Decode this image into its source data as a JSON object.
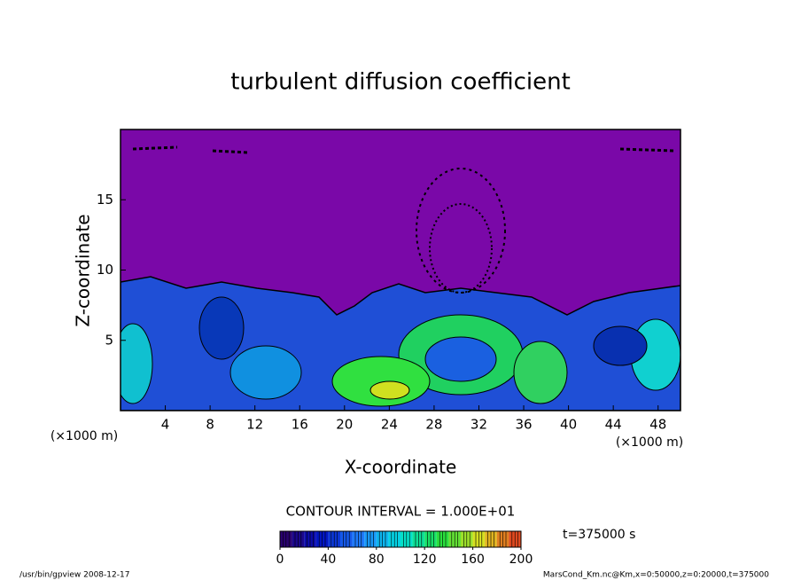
{
  "chart_data": {
    "type": "contour",
    "title": "turbulent diffusion coefficient",
    "x_label": "X-coordinate",
    "y_label": "Z-coordinate",
    "x_unit_left": "(×1000 m)",
    "x_unit_right": "(×1000 m)",
    "xlim": [
      0,
      50
    ],
    "xticks": [
      4,
      8,
      12,
      16,
      20,
      24,
      28,
      32,
      36,
      40,
      44,
      48
    ],
    "ylim": [
      0,
      20
    ],
    "yticks": [
      5,
      10,
      15
    ],
    "contour_interval": "CONTOUR INTERVAL = 1.000E+01",
    "colorbar_lim": [
      0,
      200
    ],
    "colorbar_ticks": [
      0,
      40,
      80,
      120,
      160,
      200
    ],
    "colormap": [
      "#300060",
      "#0010c0",
      "#2080ff",
      "#00e0e0",
      "#20e040",
      "#e0e020",
      "#e03020"
    ],
    "time_label": "t=375000 s",
    "footer_left": "/usr/bin/gpview   2008-12-17",
    "footer_right": "MarsCond_Km.nc@Km,x=0:50000,z=0:20000,t=375000"
  }
}
